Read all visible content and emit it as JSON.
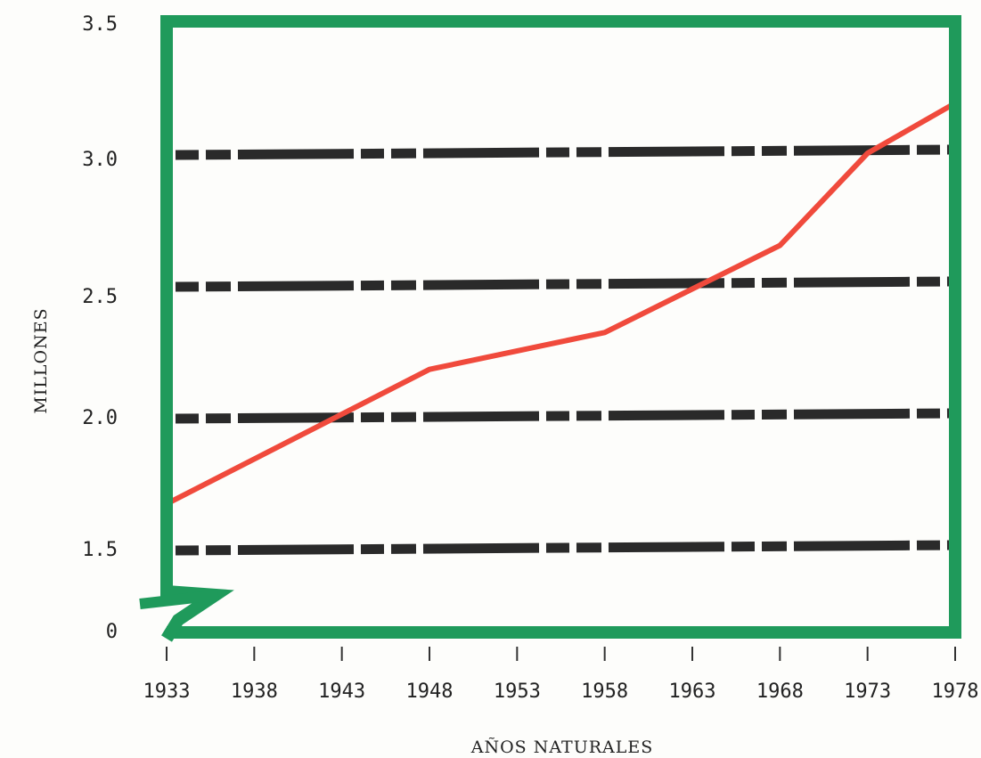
{
  "chart_data": {
    "type": "line",
    "title": "",
    "xlabel": "AÑOS NATURALES",
    "ylabel": "MILLONES",
    "x_ticks": [
      1933,
      1938,
      1943,
      1948,
      1953,
      1958,
      1963,
      1968,
      1973,
      1978
    ],
    "y_ticks": [
      "0",
      "1.5",
      "2.0",
      "2.5",
      "3.0",
      "3.5"
    ],
    "y_break": "0 to 1.5",
    "ylim": [
      1.5,
      3.5
    ],
    "xlim": [
      1933,
      1978
    ],
    "grid": "horizontal dashed at 1.5, 2.0, 2.5, 3.0",
    "series": [
      {
        "x": [
          1933,
          1948,
          1958,
          1968,
          1973,
          1978
        ],
        "y": [
          1.67,
          2.18,
          2.32,
          2.65,
          3.0,
          3.19
        ],
        "color": "#f04a3c"
      }
    ],
    "colors": {
      "frame": "#1f9a5b",
      "line": "#f04a3c",
      "grid": "#2a2a2a"
    }
  }
}
